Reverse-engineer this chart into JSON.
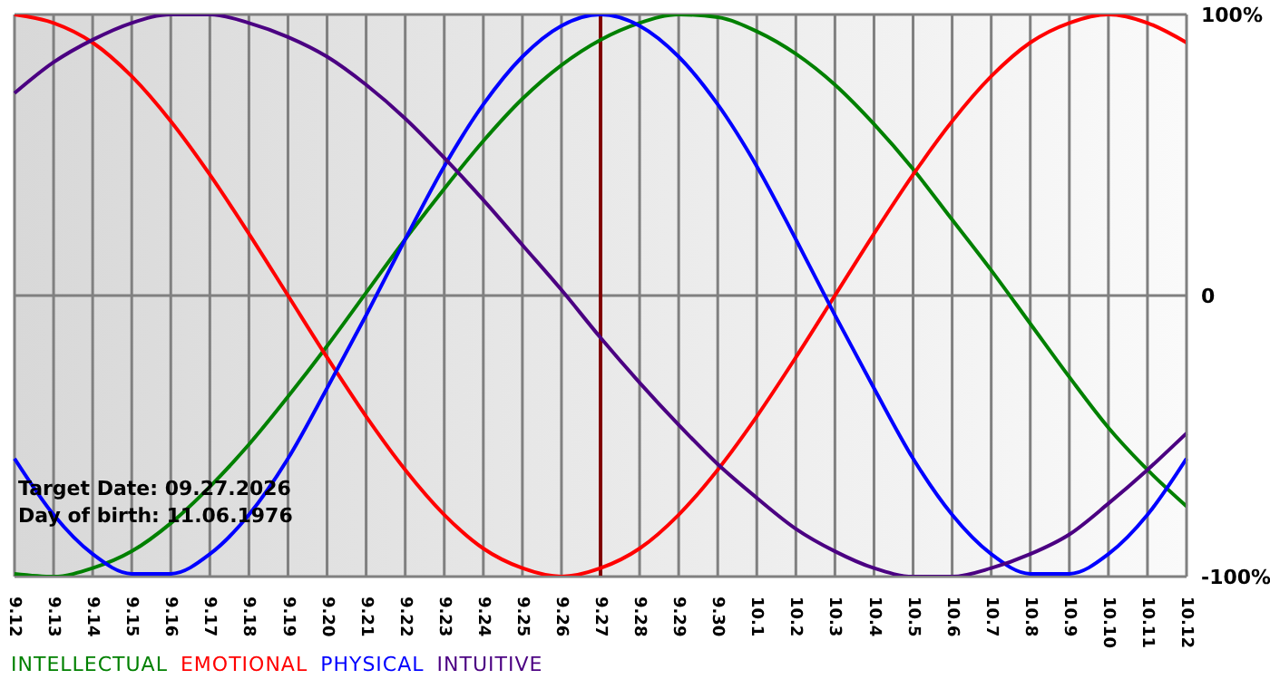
{
  "chart_data": {
    "type": "line",
    "categories": [
      "9.12",
      "9.13",
      "9.14",
      "9.15",
      "9.16",
      "9.17",
      "9.18",
      "9.19",
      "9.20",
      "9.21",
      "9.22",
      "9.23",
      "9.24",
      "9.25",
      "9.26",
      "9.27",
      "9.28",
      "9.29",
      "9.30",
      "10.1",
      "10.2",
      "10.3",
      "10.4",
      "10.5",
      "10.6",
      "10.7",
      "10.8",
      "10.9",
      "10.10",
      "10.11",
      "10.12"
    ],
    "series": [
      {
        "name": "INTELLECTUAL",
        "color": "#008000",
        "values": [
          -99,
          -100,
          -97,
          -91,
          -81,
          -68,
          -53,
          -36,
          -18,
          1,
          20,
          38,
          55,
          70,
          82,
          91,
          97,
          100,
          99,
          94,
          86,
          75,
          61,
          45,
          27,
          9,
          -10,
          -29,
          -47,
          -62,
          -75
        ]
      },
      {
        "name": "EMOTIONAL",
        "color": "#ff0000",
        "values": [
          100,
          97,
          90,
          78,
          62,
          43,
          22,
          0,
          -22,
          -43,
          -62,
          -78,
          -90,
          -97,
          -100,
          -97,
          -90,
          -78,
          -62,
          -43,
          -22,
          0,
          22,
          43,
          62,
          78,
          90,
          97,
          100,
          97,
          90
        ]
      },
      {
        "name": "PHYSICAL",
        "color": "#0000ff",
        "values": [
          -58,
          -78,
          -92,
          -99,
          -99,
          -92,
          -78,
          -58,
          -33,
          -7,
          20,
          46,
          68,
          85,
          96,
          100,
          96,
          85,
          68,
          46,
          20,
          -7,
          -33,
          -58,
          -78,
          -92,
          -99,
          -99,
          -92,
          -78,
          -58
        ]
      },
      {
        "name": "INTUITIVE",
        "color": "#4b0082",
        "values": [
          72,
          83,
          91,
          97,
          100,
          100,
          97,
          92,
          85,
          75,
          63,
          49,
          34,
          18,
          2,
          -15,
          -31,
          -46,
          -60,
          -72,
          -83,
          -91,
          -97,
          -100,
          -100,
          -97,
          -92,
          -85,
          -74,
          -62,
          -49
        ]
      }
    ],
    "ylim": [
      -100,
      100
    ],
    "yticks": [
      {
        "value": -100,
        "label": "-100%"
      },
      0,
      {
        "value": 100,
        "label": "100%"
      }
    ],
    "ref_lines": [
      {
        "axis": "x",
        "value": "9.27",
        "color": "#800000"
      }
    ],
    "annotations": [
      "Target Date: 09.27.2026",
      "Day of birth: 11.06.1976"
    ],
    "grid": true,
    "legend": "bottom left",
    "marker": "none",
    "line_style": "solid"
  }
}
